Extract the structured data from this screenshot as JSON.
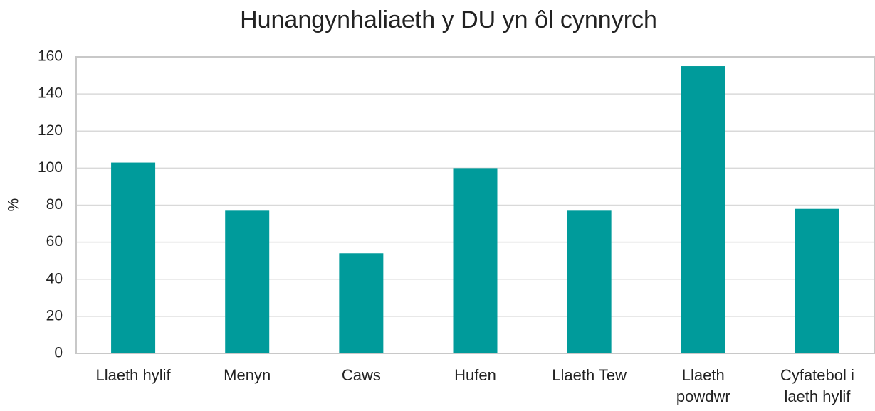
{
  "chart_data": {
    "type": "bar",
    "title": "Hunangynhaliaeth y DU yn ôl cynnyrch",
    "ylabel": "%",
    "categories": [
      "Llaeth hylif",
      "Menyn",
      "Caws",
      "Hufen",
      "Llaeth Tew",
      "Llaeth powdwr",
      "Cyfatebol i laeth hylif"
    ],
    "values": [
      103,
      77,
      54,
      100,
      77,
      155,
      78
    ],
    "color": "#009b9b",
    "ylim": [
      0,
      160
    ],
    "yticks": [
      0,
      20,
      40,
      60,
      80,
      100,
      120,
      140,
      160
    ],
    "grid": true
  }
}
